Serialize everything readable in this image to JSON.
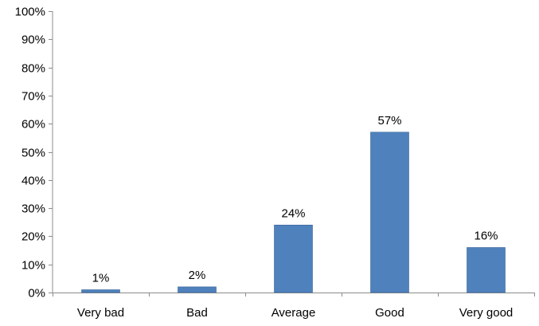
{
  "chart_data": {
    "type": "bar",
    "categories": [
      "Very bad",
      "Bad",
      "Average",
      "Good",
      "Very good"
    ],
    "values": [
      1,
      2,
      24,
      57,
      16
    ],
    "data_labels": [
      "1%",
      "2%",
      "24%",
      "57%",
      "16%"
    ],
    "ylim": [
      0,
      100
    ],
    "y_ticks": [
      0,
      10,
      20,
      30,
      40,
      50,
      60,
      70,
      80,
      90,
      100
    ],
    "y_tick_labels": [
      "0%",
      "10%",
      "20%",
      "30%",
      "40%",
      "50%",
      "60%",
      "70%",
      "80%",
      "90%",
      "100%"
    ],
    "title": "",
    "xlabel": "",
    "ylabel": "",
    "grid": false,
    "legend": "none",
    "bar_color": "#4F81BD",
    "bar_edge_color": "#3A6496",
    "axis_color": "#8C8C8C"
  }
}
